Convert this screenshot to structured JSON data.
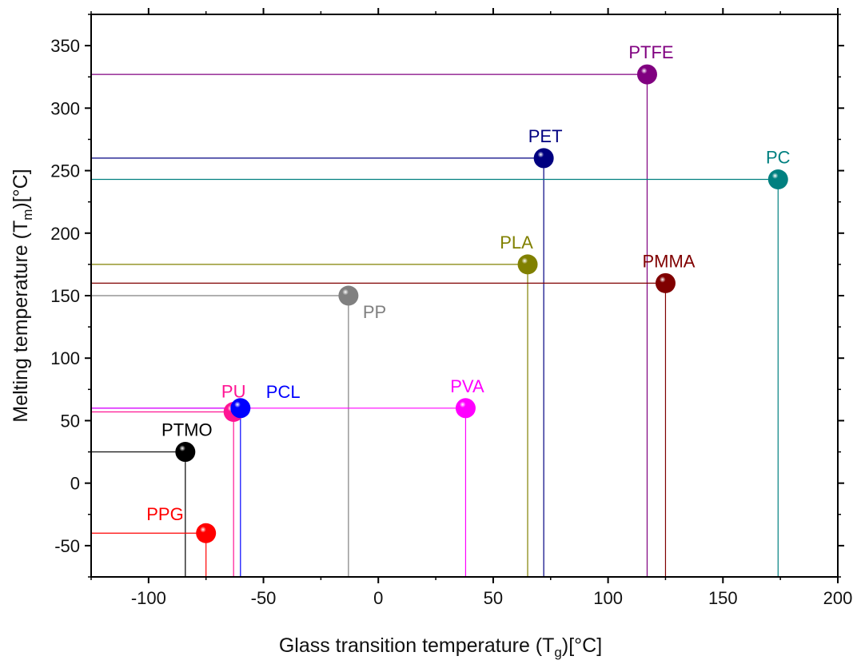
{
  "chart_data": {
    "type": "scatter",
    "xlabel": "Glass transition temperature (T",
    "xlabel_sub": "g",
    "xlabel_unit": ")[°C]",
    "ylabel": "Melting temperature (T",
    "ylabel_sub": "m",
    "ylabel_unit": ")[°C]",
    "xlim": [
      -125,
      200
    ],
    "ylim": [
      -75,
      375
    ],
    "xticks": [
      -100,
      -50,
      0,
      50,
      100,
      150,
      200
    ],
    "yticks": [
      -50,
      0,
      50,
      100,
      150,
      200,
      250,
      300,
      350
    ],
    "grid": false,
    "points": [
      {
        "label": "PTFE",
        "x": 117,
        "y": 327,
        "color": "#800080"
      },
      {
        "label": "PET",
        "x": 72,
        "y": 260,
        "color": "#000080"
      },
      {
        "label": "PC",
        "x": 174,
        "y": 243,
        "color": "#008080"
      },
      {
        "label": "PLA",
        "x": 65,
        "y": 175,
        "color": "#808000"
      },
      {
        "label": "PMMA",
        "x": 125,
        "y": 160,
        "color": "#800000"
      },
      {
        "label": "PP",
        "x": -13,
        "y": 150,
        "color": "#808080"
      },
      {
        "label": "PU",
        "x": -63,
        "y": 57,
        "color": "#ff1493"
      },
      {
        "label": "PCL",
        "x": -60,
        "y": 60,
        "color": "#0000ff"
      },
      {
        "label": "PVA",
        "x": 38,
        "y": 60,
        "color": "#ff00ff"
      },
      {
        "label": "PTMO",
        "x": -84,
        "y": 25,
        "color": "#000000"
      },
      {
        "label": "PPG",
        "x": -75,
        "y": -40,
        "color": "#ff0000"
      }
    ]
  }
}
